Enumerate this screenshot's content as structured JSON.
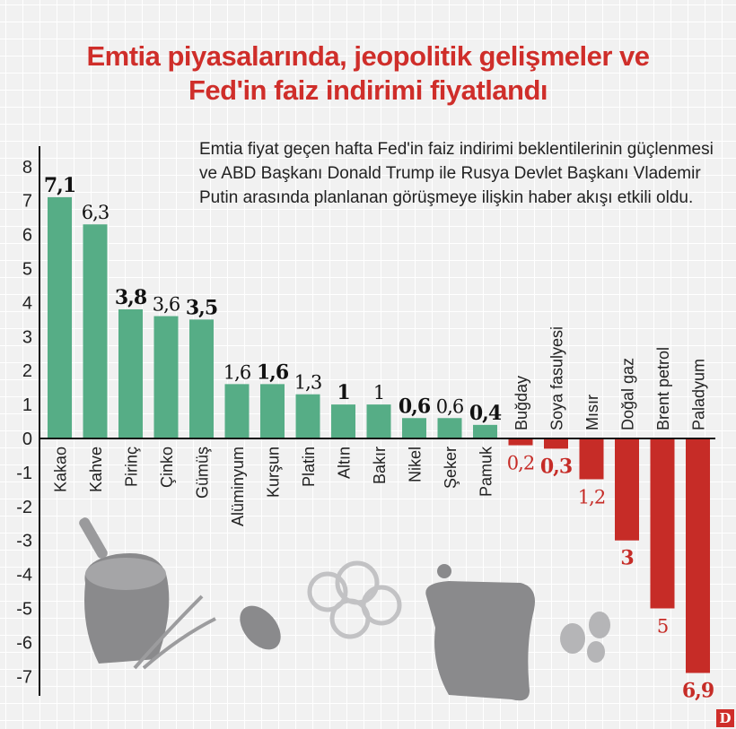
{
  "title": "Emtia piyasalarında, jeopolitik gelişmeler ve Fed'in faiz indirimi fiyatlandı",
  "title_lines": [
    "Emtia piyasalarında, jeopolitik gelişmeler ve",
    "Fed'in faiz indirimi fiyatlandı"
  ],
  "description": "Emtia fiyat geçen hafta Fed'in faiz indirimi beklentilerinin güçlenmesi ve ABD Başkanı Donald Trump ile Rusya Devlet Başkanı Vlademir Putin arasında planlanan görüşmeye ilişkin haber akışı etkili oldu.",
  "logo": "D",
  "colors": {
    "positive": "#56ad86",
    "negative": "#c62c27",
    "title": "#cf2e2a"
  },
  "chart_data": {
    "type": "bar",
    "title": "",
    "xlabel": "",
    "ylabel": "",
    "ylim": [
      -7,
      8
    ],
    "yticks": [
      8,
      7,
      6,
      5,
      4,
      3,
      2,
      1,
      0,
      -1,
      -2,
      -3,
      -4,
      -5,
      -6,
      -7
    ],
    "grid": true,
    "categories": [
      "Kakao",
      "Kahve",
      "Pirinç",
      "Çinko",
      "Gümüş",
      "Alüminyum",
      "Kurşun",
      "Platin",
      "Altın",
      "Bakır",
      "Nikel",
      "Şeker",
      "Pamuk",
      "Buğday",
      "Soya fasulyesi",
      "Mısır",
      "Doğal gaz",
      "Brent petrol",
      "Paladyum"
    ],
    "values": [
      7.1,
      6.3,
      3.8,
      3.6,
      3.5,
      1.6,
      1.6,
      1.3,
      1,
      1,
      0.6,
      0.6,
      0.4,
      -0.2,
      -0.3,
      -1.2,
      -3,
      -5,
      -6.9
    ],
    "data_labels": [
      "7,1",
      "6,3",
      "3,8",
      "3,6",
      "3,5",
      "1,6",
      "1,6",
      "1,3",
      "1",
      "1",
      "0,6",
      "0,6",
      "0,4",
      "0,2",
      "0,3",
      "1,2",
      "3",
      "5",
      "6,9"
    ],
    "label_bold": [
      true,
      false,
      true,
      false,
      true,
      false,
      true,
      false,
      true,
      false,
      true,
      false,
      true,
      false,
      true,
      false,
      true,
      false,
      true
    ]
  },
  "illustrations": [
    "rice-sack-icon",
    "wheat-icon",
    "cocoa-pod-icon",
    "cotton-icon",
    "grain-sack-icon",
    "coffee-beans-icon"
  ]
}
